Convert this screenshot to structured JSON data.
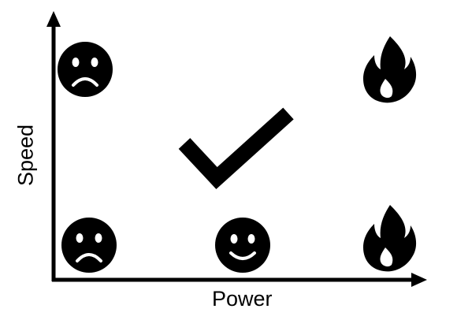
{
  "axes": {
    "x_label": "Power",
    "y_label": "Speed"
  },
  "colors": {
    "ink": "#000000",
    "background": "#ffffff"
  },
  "icons": {
    "sad_top_left": "sad-face-icon",
    "fire_top_right": "fire-icon",
    "checkmark_center": "checkmark-icon",
    "sad_bottom_left": "sad-face-icon",
    "smiley_bottom_center": "smiley-face-icon",
    "fire_bottom_right": "fire-icon"
  }
}
